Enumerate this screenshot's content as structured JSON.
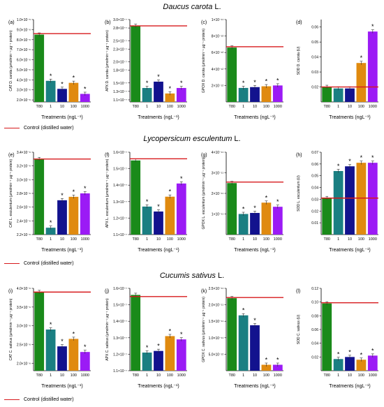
{
  "species_titles": [
    {
      "name": "Daucus carota",
      "author": "L."
    },
    {
      "name": "Lycopersicum esculentum",
      "author": "L."
    },
    {
      "name": "Cucumis sativus",
      "author": "L."
    }
  ],
  "legend_label": "Control (distilled water)",
  "colors": {
    "bars": [
      "#1a8a1a",
      "#1a7f82",
      "#12128e",
      "#e08a0f",
      "#9b1bf5"
    ],
    "control_line": "#d7191c"
  },
  "chart_data": [
    {
      "type": "bar",
      "panel_label": "(a)",
      "ylabel": "CAT D. carota (µmolmin⁻¹ µg⁻¹ protein)",
      "xlabel": "Treatments (ngL⁻¹)",
      "categories": [
        "T80",
        "1",
        "10",
        "100",
        "1000"
      ],
      "values": [
        8.5e-06,
        3.9e-06,
        3.1e-06,
        3.7e-06,
        2.6e-06
      ],
      "significant": [
        false,
        true,
        true,
        true,
        true
      ],
      "control": 8.6e-06,
      "ylim": [
        1.8e-06,
        1e-05
      ],
      "ticks": [
        {
          "v": 2e-06,
          "label": "2.0×10⁻⁶"
        },
        {
          "v": 3e-06,
          "label": "3.0×10⁻⁶"
        },
        {
          "v": 4e-06,
          "label": "4.0×10⁻⁶"
        },
        {
          "v": 5e-06,
          "label": "5.0×10⁻⁶"
        },
        {
          "v": 6e-06,
          "label": "6.0×10⁻⁶"
        },
        {
          "v": 7e-06,
          "label": "7.0×10⁻⁶"
        },
        {
          "v": 8e-06,
          "label": "8.0×10⁻⁶"
        },
        {
          "v": 9e-06,
          "label": "9.0×10⁻⁶"
        },
        {
          "v": 1e-05,
          "label": "1.0×10⁻⁵"
        }
      ]
    },
    {
      "type": "bar",
      "panel_label": "(b)",
      "ylabel": "APX D. carota (µmolmin⁻¹ µg⁻¹ protein)",
      "xlabel": "Treatments (ngL⁻¹)",
      "categories": [
        "T80",
        "1",
        "10",
        "100",
        "1000"
      ],
      "values": [
        2.85e-07,
        1.38e-07,
        1.53e-07,
        1.25e-07,
        1.38e-07
      ],
      "significant": [
        false,
        true,
        true,
        true,
        true
      ],
      "control": 2.85e-07,
      "ylim": [
        1.05e-07,
        3e-07
      ],
      "ticks": [
        {
          "v": 1.1e-07,
          "label": "1.1×10⁻⁷"
        },
        {
          "v": 1.3e-07,
          "label": "1.3×10⁻⁷"
        },
        {
          "v": 1.5e-07,
          "label": "1.5×10⁻⁷"
        },
        {
          "v": 1.8e-07,
          "label": "1.8×10⁻⁷"
        },
        {
          "v": 2e-07,
          "label": "2.0×10⁻⁷"
        },
        {
          "v": 2.3e-07,
          "label": "2.3×10⁻⁷"
        },
        {
          "v": 2.5e-07,
          "label": "2.5×10⁻⁷"
        },
        {
          "v": 2.8e-07,
          "label": "2.8×10⁻⁷"
        },
        {
          "v": 3e-07,
          "label": "3.0×10⁻⁷"
        }
      ]
    },
    {
      "type": "bar",
      "panel_label": "(c)",
      "ylabel": "GPOX D. carota (µmolmin⁻¹ µg⁻¹ protein)",
      "xlabel": "Treatments (ngL⁻¹)",
      "categories": [
        "T80",
        "1",
        "10",
        "100",
        "1000"
      ],
      "values": [
        6.6e-12,
        1.7e-12,
        1.8e-12,
        1.9e-12,
        2e-12
      ],
      "significant": [
        false,
        true,
        true,
        true,
        true
      ],
      "control": 6.7e-12,
      "ylim": [
        0,
        1e-11
      ],
      "ticks": [
        {
          "v": 2e-12,
          "label": "2×10⁻¹²"
        },
        {
          "v": 4e-12,
          "label": "4×10⁻¹²"
        },
        {
          "v": 6e-12,
          "label": "6×10⁻¹²"
        },
        {
          "v": 8e-12,
          "label": "8×10⁻¹²"
        },
        {
          "v": 1e-11,
          "label": "1×10⁻¹¹"
        }
      ]
    },
    {
      "type": "bar",
      "panel_label": "(d)",
      "ylabel": "SOD D. carota (U)",
      "xlabel": "Treatments (ngL⁻¹)",
      "categories": [
        "T80",
        "1",
        "10",
        "100",
        "1000"
      ],
      "values": [
        0.02,
        0.019,
        0.019,
        0.036,
        0.057
      ],
      "significant": [
        false,
        false,
        false,
        true,
        true
      ],
      "control": 0.02,
      "ylim": [
        0.01,
        0.065
      ],
      "ticks": [
        {
          "v": 0.02,
          "label": "0.02"
        },
        {
          "v": 0.03,
          "label": "0.03"
        },
        {
          "v": 0.04,
          "label": "0.04"
        },
        {
          "v": 0.05,
          "label": "0.05"
        },
        {
          "v": 0.06,
          "label": "0.06"
        }
      ]
    },
    {
      "type": "bar",
      "panel_label": "(e)",
      "ylabel": "CAT L. esculentum (µmolmin⁻¹ µg⁻¹ protein)",
      "xlabel": "Treatments (ngL⁻¹)",
      "categories": [
        "T80",
        "1",
        "10",
        "100",
        "1000"
      ],
      "values": [
        3.3e-06,
        2.3e-06,
        2.7e-06,
        2.75e-06,
        2.8e-06
      ],
      "significant": [
        false,
        true,
        true,
        true,
        true
      ],
      "control": 3.3e-06,
      "ylim": [
        2.2e-06,
        3.4e-06
      ],
      "ticks": [
        {
          "v": 2.2e-06,
          "label": "2.2×10⁻⁶"
        },
        {
          "v": 2.4e-06,
          "label": "2.4×10⁻⁶"
        },
        {
          "v": 2.6e-06,
          "label": "2.6×10⁻⁶"
        },
        {
          "v": 2.8e-06,
          "label": "2.8×10⁻⁶"
        },
        {
          "v": 3e-06,
          "label": "3.0×10⁻⁶"
        },
        {
          "v": 3.2e-06,
          "label": "3.2×10⁻⁶"
        },
        {
          "v": 3.4e-06,
          "label": "3.4×10⁻⁶"
        }
      ]
    },
    {
      "type": "bar",
      "panel_label": "(f)",
      "ylabel": "APX L. esculentum (µmolmin⁻¹ µg⁻¹ protein)",
      "xlabel": "Treatments (ngL⁻¹)",
      "categories": [
        "T80",
        "1",
        "10",
        "100",
        "1000"
      ],
      "values": [
        1.55e-07,
        1.27e-07,
        1.24e-07,
        1.33e-07,
        1.41e-07
      ],
      "significant": [
        false,
        true,
        true,
        true,
        true
      ],
      "control": 1.56e-07,
      "ylim": [
        1.1e-07,
        1.6e-07
      ],
      "ticks": [
        {
          "v": 1.1e-07,
          "label": "1.1×10⁻⁷"
        },
        {
          "v": 1.2e-07,
          "label": "1.2×10⁻⁷"
        },
        {
          "v": 1.3e-07,
          "label": "1.3×10⁻⁷"
        },
        {
          "v": 1.4e-07,
          "label": "1.4×10⁻⁷"
        },
        {
          "v": 1.5e-07,
          "label": "1.5×10⁻⁷"
        },
        {
          "v": 1.6e-07,
          "label": "1.6×10⁻⁷"
        }
      ]
    },
    {
      "type": "bar",
      "panel_label": "(g)",
      "ylabel": "GPOX L. esculentum (µmolmin⁻¹ µg⁻¹ protein)",
      "xlabel": "Treatments (ngL⁻¹)",
      "categories": [
        "T80",
        "1",
        "10",
        "100",
        "1000"
      ],
      "values": [
        2.5e-11,
        1e-11,
        1.05e-11,
        1.55e-11,
        1.35e-11
      ],
      "significant": [
        false,
        true,
        true,
        true,
        true
      ],
      "control": 2.55e-11,
      "ylim": [
        0,
        4e-11
      ],
      "ticks": [
        {
          "v": 1e-11,
          "label": "1×10⁻¹¹"
        },
        {
          "v": 2e-11,
          "label": "2×10⁻¹¹"
        },
        {
          "v": 3e-11,
          "label": "3×10⁻¹¹"
        },
        {
          "v": 4e-11,
          "label": "4×10⁻¹¹"
        }
      ]
    },
    {
      "type": "bar",
      "panel_label": "(h)",
      "ylabel": "SOD L. esculentum (U)",
      "xlabel": "Treatments (ngL⁻¹)",
      "categories": [
        "T80",
        "1",
        "10",
        "100",
        "1000"
      ],
      "values": [
        0.031,
        0.054,
        0.058,
        0.061,
        0.061
      ],
      "significant": [
        false,
        true,
        true,
        true,
        true
      ],
      "control": 0.031,
      "ylim": [
        0.0,
        0.07
      ],
      "ticks": [
        {
          "v": 0.01,
          "label": "0.01"
        },
        {
          "v": 0.02,
          "label": "0.02"
        },
        {
          "v": 0.03,
          "label": "0.03"
        },
        {
          "v": 0.04,
          "label": "0.04"
        },
        {
          "v": 0.05,
          "label": "0.05"
        },
        {
          "v": 0.06,
          "label": "0.06"
        },
        {
          "v": 0.07,
          "label": "0.07"
        }
      ]
    },
    {
      "type": "bar",
      "panel_label": "(i)",
      "ylabel": "CAT C. sativus (µmolmin⁻¹ µg⁻¹ protein)",
      "xlabel": "Treatments (ngL⁻¹)",
      "categories": [
        "T80",
        "1",
        "10",
        "100",
        "1000"
      ],
      "values": [
        3.9e-06,
        2.9e-06,
        2.45e-06,
        2.65e-06,
        2.3e-06
      ],
      "significant": [
        false,
        true,
        true,
        true,
        true
      ],
      "control": 3.9e-06,
      "ylim": [
        1.8e-06,
        4e-06
      ],
      "ticks": [
        {
          "v": 2e-06,
          "label": "2.0×10⁻⁶"
        },
        {
          "v": 2.5e-06,
          "label": "2.5×10⁻⁶"
        },
        {
          "v": 3e-06,
          "label": "3.0×10⁻⁶"
        },
        {
          "v": 3.5e-06,
          "label": "3.5×10⁻⁶"
        },
        {
          "v": 4e-06,
          "label": "4.0×10⁻⁶"
        }
      ]
    },
    {
      "type": "bar",
      "panel_label": "(j)",
      "ylabel": "APX C. sativus (µmolmin⁻¹ µg⁻¹ protein)",
      "xlabel": "Treatments (ngL⁻¹)",
      "categories": [
        "T80",
        "1",
        "10",
        "100",
        "1000"
      ],
      "values": [
        1.56e-07,
        1.21e-07,
        1.22e-07,
        1.31e-07,
        1.29e-07
      ],
      "significant": [
        false,
        true,
        true,
        true,
        true
      ],
      "control": 1.55e-07,
      "ylim": [
        1.1e-07,
        1.6e-07
      ],
      "ticks": [
        {
          "v": 1.1e-07,
          "label": "1.1×10⁻⁷"
        },
        {
          "v": 1.2e-07,
          "label": "1.2×10⁻⁷"
        },
        {
          "v": 1.3e-07,
          "label": "1.3×10⁻⁷"
        },
        {
          "v": 1.4e-07,
          "label": "1.4×10⁻⁷"
        },
        {
          "v": 1.5e-07,
          "label": "1.5×10⁻⁷"
        },
        {
          "v": 1.6e-07,
          "label": "1.6×10⁻⁷"
        }
      ]
    },
    {
      "type": "bar",
      "panel_label": "(k)",
      "ylabel": "GPOX C. sativus (µmolmin⁻¹ µg⁻¹ protein)",
      "xlabel": "Treatments (ngL⁻¹)",
      "categories": [
        "T80",
        "1",
        "10",
        "100",
        "1000"
      ],
      "values": [
        2.2e-11,
        1.68e-11,
        1.38e-11,
        1.8e-12,
        1.8e-12
      ],
      "significant": [
        false,
        true,
        true,
        true,
        true
      ],
      "control": 2.22e-11,
      "ylim": [
        0,
        2.5e-11
      ],
      "ticks": [
        {
          "v": 5e-12,
          "label": "5.0×10⁻¹²"
        },
        {
          "v": 1e-11,
          "label": "1.0×10⁻¹¹"
        },
        {
          "v": 1.5e-11,
          "label": "1.5×10⁻¹¹"
        },
        {
          "v": 2e-11,
          "label": "2.0×10⁻¹¹"
        },
        {
          "v": 2.5e-11,
          "label": "2.5×10⁻¹¹"
        }
      ]
    },
    {
      "type": "bar",
      "panel_label": "(l)",
      "ylabel": "SOD C. sativus (U)",
      "xlabel": "Treatments (ngL⁻¹)",
      "categories": [
        "T80",
        "1",
        "10",
        "100",
        "1000"
      ],
      "values": [
        0.098,
        0.017,
        0.02,
        0.016,
        0.022
      ],
      "significant": [
        false,
        true,
        true,
        true,
        true
      ],
      "control": 0.099,
      "ylim": [
        0,
        0.12
      ],
      "ticks": [
        {
          "v": 0.02,
          "label": "0.02"
        },
        {
          "v": 0.04,
          "label": "0.04"
        },
        {
          "v": 0.06,
          "label": "0.06"
        },
        {
          "v": 0.08,
          "label": "0.08"
        },
        {
          "v": 0.1,
          "label": "0.10"
        },
        {
          "v": 0.12,
          "label": "0.12"
        }
      ]
    }
  ]
}
